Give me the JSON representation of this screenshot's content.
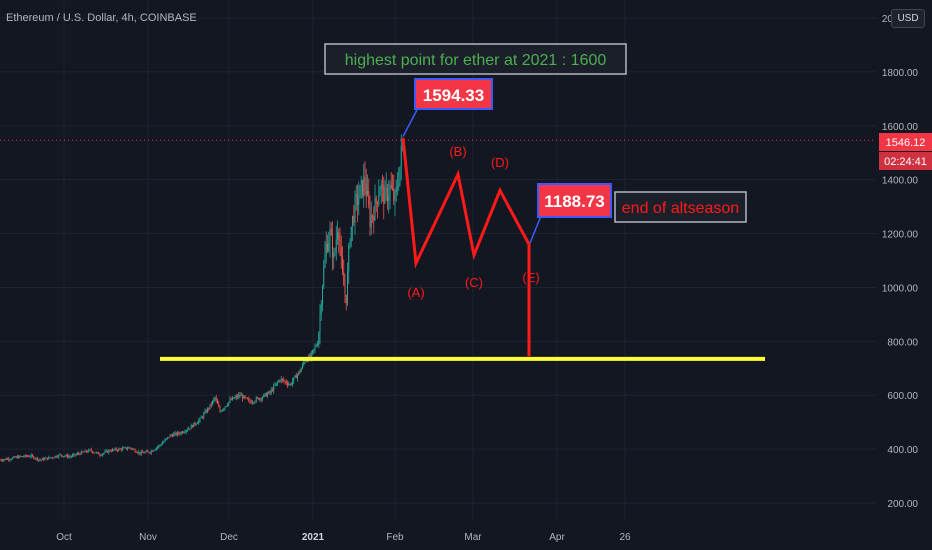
{
  "header": {
    "symbol_title": "Ethereum / U.S. Dollar, 4h, COINBASE",
    "currency_label": "USD"
  },
  "colors": {
    "background": "#131722",
    "up_candle": "#26a69a",
    "down_candle": "#ef5350",
    "support_line": "#ffff33",
    "wave_line": "#ff1a1a",
    "price_badge": "#f23645",
    "grid": "#1f2330"
  },
  "chart_data": {
    "type": "candlestick",
    "title": "Ethereum / U.S. Dollar, 4h, COINBASE",
    "ylim": [
      150,
      2050
    ],
    "x_tick_labels": [
      "Oct",
      "Nov",
      "Dec",
      "2021",
      "Feb",
      "Mar",
      "Apr",
      "26"
    ],
    "y_tick_labels": [
      "2000.00",
      "1800.00",
      "1600.00",
      "1400.00",
      "1200.00",
      "1000.00",
      "800.00",
      "600.00",
      "400.00",
      "200.00"
    ],
    "current_price_label": "1546.12",
    "countdown_label": "02:24:41",
    "current_price": 1546.12,
    "price_path": [
      {
        "t": 0,
        "p": 360
      },
      {
        "t": 10,
        "p": 365
      },
      {
        "t": 20,
        "p": 372
      },
      {
        "t": 30,
        "p": 375
      },
      {
        "t": 40,
        "p": 360
      },
      {
        "t": 50,
        "p": 368
      },
      {
        "t": 60,
        "p": 378
      },
      {
        "t": 70,
        "p": 372
      },
      {
        "t": 80,
        "p": 385
      },
      {
        "t": 90,
        "p": 395
      },
      {
        "t": 100,
        "p": 380
      },
      {
        "t": 110,
        "p": 395
      },
      {
        "t": 120,
        "p": 400
      },
      {
        "t": 130,
        "p": 405
      },
      {
        "t": 140,
        "p": 385
      },
      {
        "t": 150,
        "p": 390
      },
      {
        "t": 160,
        "p": 415
      },
      {
        "t": 170,
        "p": 450
      },
      {
        "t": 180,
        "p": 460
      },
      {
        "t": 190,
        "p": 480
      },
      {
        "t": 200,
        "p": 510
      },
      {
        "t": 210,
        "p": 560
      },
      {
        "t": 215,
        "p": 590
      },
      {
        "t": 220,
        "p": 540
      },
      {
        "t": 230,
        "p": 580
      },
      {
        "t": 240,
        "p": 600
      },
      {
        "t": 250,
        "p": 575
      },
      {
        "t": 260,
        "p": 590
      },
      {
        "t": 270,
        "p": 610
      },
      {
        "t": 280,
        "p": 660
      },
      {
        "t": 290,
        "p": 640
      },
      {
        "t": 300,
        "p": 690
      },
      {
        "t": 305,
        "p": 730
      },
      {
        "t": 310,
        "p": 740
      },
      {
        "t": 318,
        "p": 800
      },
      {
        "t": 322,
        "p": 1000
      },
      {
        "t": 326,
        "p": 1150
      },
      {
        "t": 330,
        "p": 1200
      },
      {
        "t": 334,
        "p": 1100
      },
      {
        "t": 338,
        "p": 1250
      },
      {
        "t": 342,
        "p": 1050
      },
      {
        "t": 346,
        "p": 950
      },
      {
        "t": 350,
        "p": 1200
      },
      {
        "t": 355,
        "p": 1300
      },
      {
        "t": 360,
        "p": 1350
      },
      {
        "t": 365,
        "p": 1400
      },
      {
        "t": 370,
        "p": 1250
      },
      {
        "t": 375,
        "p": 1300
      },
      {
        "t": 380,
        "p": 1380
      },
      {
        "t": 385,
        "p": 1330
      },
      {
        "t": 390,
        "p": 1370
      },
      {
        "t": 395,
        "p": 1320
      },
      {
        "t": 400,
        "p": 1450
      },
      {
        "t": 403,
        "p": 1560
      }
    ],
    "support_level": 735,
    "annotations": {
      "highest_note": "highest point for ether at 2021 : 1600",
      "peak_badge": "1594.33",
      "target_badge": "1188.73",
      "end_note": "end of altseason"
    },
    "wave_points": [
      {
        "t": 403,
        "p": 1555
      },
      {
        "t": 416,
        "p": 1090,
        "label": "(A)"
      },
      {
        "t": 458,
        "p": 1420,
        "label": "(B)"
      },
      {
        "t": 474,
        "p": 1120,
        "label": "(C)"
      },
      {
        "t": 500,
        "p": 1360,
        "label": "(D)"
      },
      {
        "t": 529,
        "p": 1160,
        "label": "(E)"
      },
      {
        "t": 529,
        "p": 745
      }
    ]
  }
}
